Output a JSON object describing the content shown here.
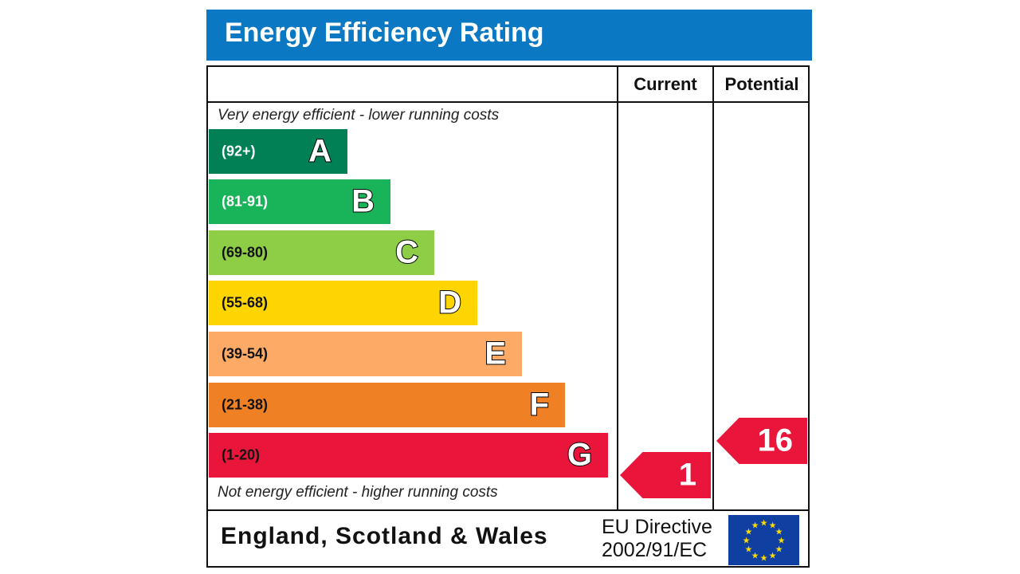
{
  "chart_data": {
    "type": "bar",
    "title": "Energy Efficiency Rating",
    "columns": [
      "Current",
      "Potential"
    ],
    "top_note": "Very energy efficient - lower running costs",
    "bottom_note": "Not energy efficient - higher running costs",
    "bands": [
      {
        "letter": "A",
        "range": "(92+)",
        "color": "#008054",
        "range_color": "#ffffff"
      },
      {
        "letter": "B",
        "range": "(81-91)",
        "color": "#19b459",
        "range_color": "#ffffff"
      },
      {
        "letter": "C",
        "range": "(69-80)",
        "color": "#8dce46",
        "range_color": "#111111"
      },
      {
        "letter": "D",
        "range": "(55-68)",
        "color": "#ffd500",
        "range_color": "#111111"
      },
      {
        "letter": "E",
        "range": "(39-54)",
        "color": "#fcaa65",
        "range_color": "#111111"
      },
      {
        "letter": "F",
        "range": "(21-38)",
        "color": "#ef8023",
        "range_color": "#111111"
      },
      {
        "letter": "G",
        "range": "(1-20)",
        "color": "#e9153b",
        "range_color": "#111111"
      }
    ],
    "current": {
      "value": "1",
      "band": "G",
      "color": "#e9153b"
    },
    "potential": {
      "value": "16",
      "band": "G",
      "color": "#e9153b"
    }
  },
  "footer": {
    "region": "England, Scotland & Wales",
    "directive_line1": "EU Directive",
    "directive_line2": "2002/91/EC",
    "flag_icon": "eu-flag-icon"
  }
}
